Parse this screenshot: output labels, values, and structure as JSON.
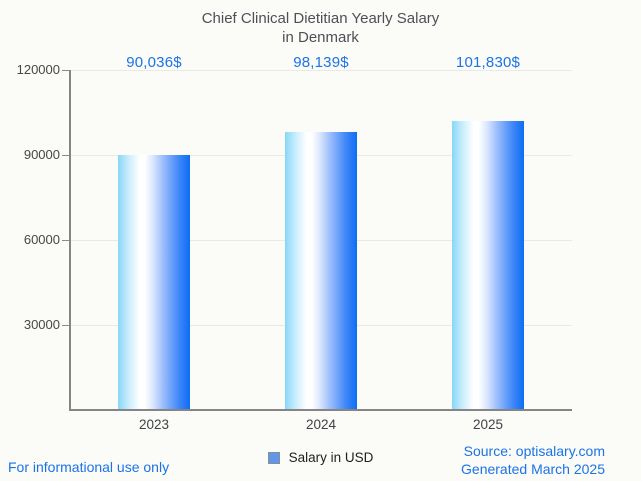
{
  "title": {
    "line1": "Chief Clinical Dietitian Yearly Salary",
    "line2": "in Denmark"
  },
  "chart_data": {
    "type": "bar",
    "title": "Chief Clinical Dietitian Yearly Salary in Denmark",
    "categories": [
      "2023",
      "2024",
      "2025"
    ],
    "series": [
      {
        "name": "Salary in USD",
        "values": [
          90036,
          98139,
          101830
        ]
      }
    ],
    "value_labels": [
      "90,036$",
      "98,139$",
      "101,830$"
    ],
    "xlabel": "",
    "ylabel": "",
    "ylim": [
      0,
      120000
    ],
    "yticks": [
      30000,
      60000,
      90000,
      120000
    ],
    "grid": true,
    "legend_position": "bottom",
    "bar_gradient": [
      "#87d7f8",
      "#ffffff",
      "#0c6ef4"
    ]
  },
  "legend": {
    "label": "Salary in USD",
    "marker_color": "#5f97ee"
  },
  "footer": {
    "left": "For informational use only",
    "source": "Source: optisalary.com",
    "generated": "Generated March 2025"
  },
  "colors": {
    "accent_blue": "#1a73e8",
    "title_gray": "#4d5156",
    "axis_gray": "#858585",
    "background": "#fbfbf8"
  }
}
